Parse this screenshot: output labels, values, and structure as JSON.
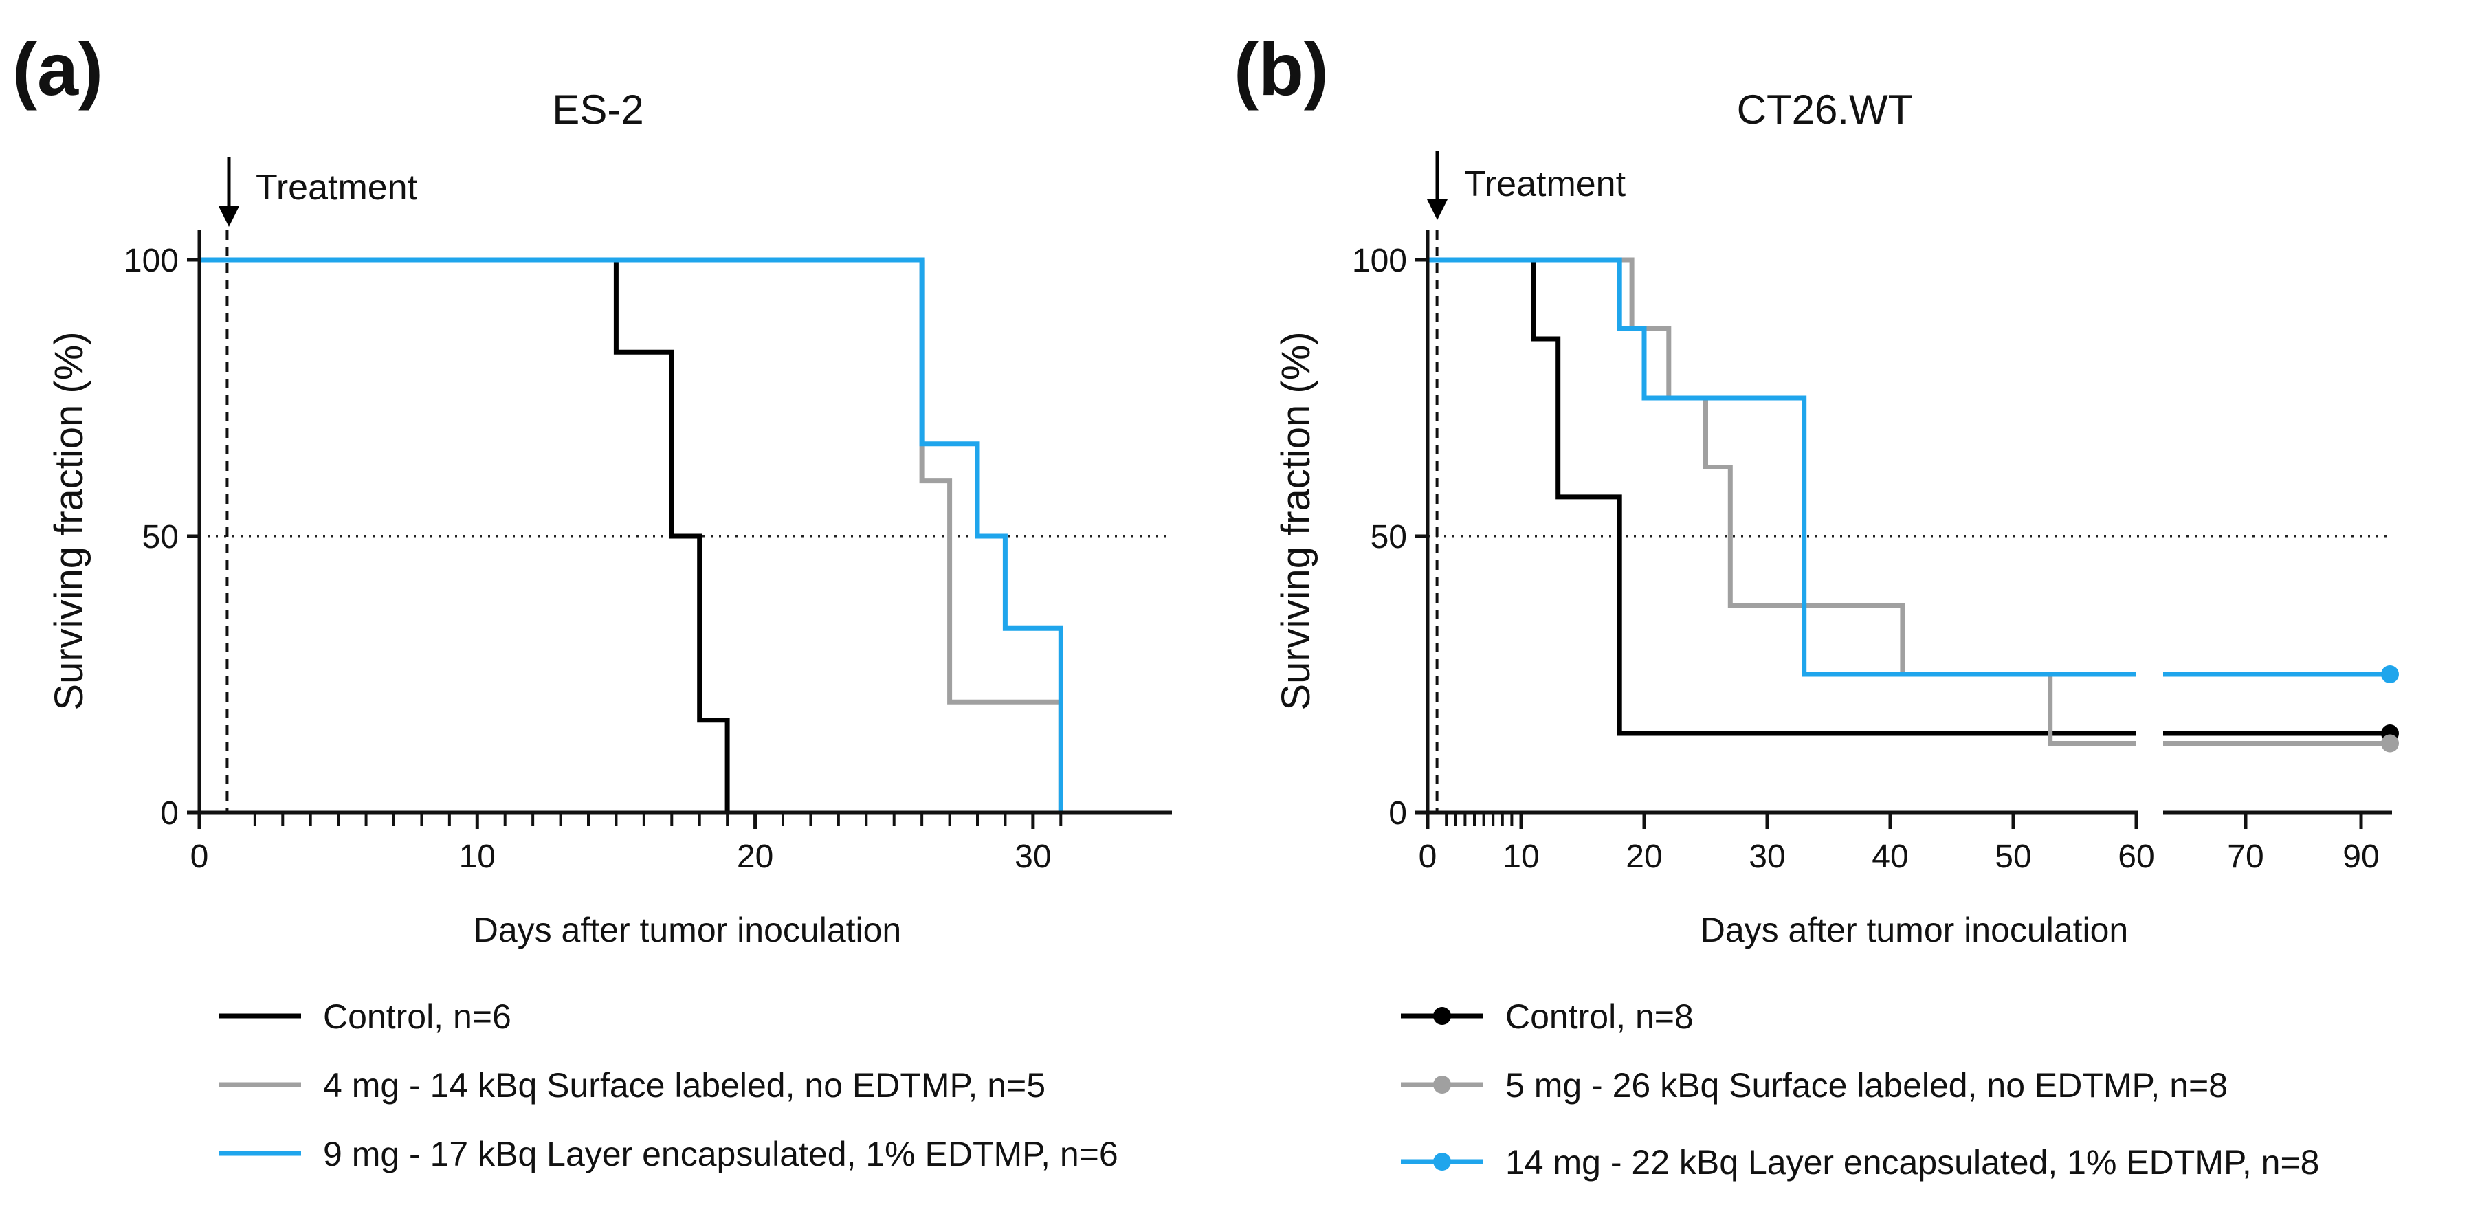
{
  "chart_data": [
    {
      "panel": "(a)",
      "type": "line",
      "subtype": "kaplan-meier",
      "title": "ES-2",
      "xlabel": "Days after tumor inoculation",
      "ylabel": "Surviving fraction (%)",
      "xlim": [
        0,
        35
      ],
      "ylim": [
        0,
        100
      ],
      "xticks": [
        0,
        10,
        20,
        30
      ],
      "minor_xticks": [
        2,
        3,
        4,
        5,
        6,
        7,
        8,
        9,
        10,
        11,
        12,
        13,
        14,
        15,
        16,
        17,
        18,
        19,
        20,
        21,
        22,
        23,
        24,
        25,
        26,
        27,
        28,
        29,
        30,
        31
      ],
      "yticks": [
        0,
        50,
        100
      ],
      "annotation": "Treatment",
      "treatment_day": 1,
      "reference_y": 50,
      "series": [
        {
          "name": "Control, n=6",
          "color": "#000000",
          "points": [
            [
              0,
              100
            ],
            [
              15,
              100
            ],
            [
              15,
              83.3
            ],
            [
              17,
              83.3
            ],
            [
              17,
              50
            ],
            [
              18,
              50
            ],
            [
              18,
              16.7
            ],
            [
              19,
              16.7
            ],
            [
              19,
              0
            ]
          ]
        },
        {
          "name": "4 mg - 14 kBq  Surface labeled, no EDTMP, n=5",
          "color": "#a0a0a0",
          "points": [
            [
              26,
              100
            ],
            [
              26,
              60
            ],
            [
              27,
              60
            ],
            [
              27,
              20
            ],
            [
              31,
              20
            ],
            [
              31,
              0
            ]
          ]
        },
        {
          "name": "9 mg - 17 kBq Layer encapsulated, 1%  EDTMP, n=6",
          "color": "#1fa5ec",
          "points": [
            [
              0,
              100
            ],
            [
              26,
              100
            ],
            [
              26,
              66.7
            ],
            [
              28,
              66.7
            ],
            [
              28,
              50
            ],
            [
              29,
              50
            ],
            [
              29,
              33.3
            ],
            [
              31,
              33.3
            ],
            [
              31,
              0
            ]
          ]
        }
      ],
      "legend": [
        "Control, n=6",
        "4 mg - 14 kBq  Surface labeled, no EDTMP, n=5",
        "9 mg - 17 kBq Layer encapsulated, 1%  EDTMP, n=6"
      ]
    },
    {
      "panel": "(b)",
      "type": "line",
      "subtype": "kaplan-meier",
      "title": "CT26.WT",
      "xlabel": "Days after tumor inoculation",
      "ylabel": "Surviving fraction (%)",
      "xlim": [
        0,
        95
      ],
      "axis_break": [
        60,
        63
      ],
      "ylim": [
        0,
        100
      ],
      "xticks": [
        0,
        10,
        20,
        30,
        40,
        50,
        60,
        70,
        90
      ],
      "minor_xticks": [
        2,
        3,
        4,
        5,
        6,
        7,
        8,
        9
      ],
      "yticks": [
        0,
        50,
        100
      ],
      "annotation": "Treatment",
      "treatment_day": 1,
      "reference_y": 50,
      "series": [
        {
          "name": "Control, n=8",
          "color": "#000000",
          "points": [
            [
              0,
              100
            ],
            [
              11,
              100
            ],
            [
              11,
              85.7
            ],
            [
              13,
              85.7
            ],
            [
              13,
              57.1
            ],
            [
              18,
              57.1
            ],
            [
              18,
              14.3
            ],
            [
              60,
              14.3
            ],
            [
              64,
              14.3
            ],
            [
              95,
              14.3
            ]
          ],
          "end_marker": true
        },
        {
          "name": "5 mg - 26 kBq Surface labeled, no EDTMP, n=8",
          "color": "#a0a0a0",
          "points": [
            [
              0,
              100
            ],
            [
              19,
              100
            ],
            [
              19,
              87.5
            ],
            [
              22,
              87.5
            ],
            [
              22,
              75
            ],
            [
              25,
              75
            ],
            [
              25,
              62.5
            ],
            [
              27,
              62.5
            ],
            [
              27,
              37.5
            ],
            [
              41,
              37.5
            ],
            [
              41,
              25
            ],
            [
              53,
              25
            ],
            [
              53,
              12.5
            ],
            [
              60,
              12.5
            ],
            [
              64,
              12.5
            ],
            [
              95,
              12.5
            ]
          ],
          "end_marker": true
        },
        {
          "name": "14 mg - 22 kBq Layer encapsulated, 1% EDTMP, n=8",
          "color": "#1fa5ec",
          "points": [
            [
              0,
              100
            ],
            [
              18,
              100
            ],
            [
              18,
              87.5
            ],
            [
              20,
              87.5
            ],
            [
              20,
              75
            ],
            [
              33,
              75
            ],
            [
              33,
              25
            ],
            [
              60,
              25
            ],
            [
              64,
              25
            ],
            [
              95,
              25
            ]
          ],
          "end_marker": true
        }
      ],
      "legend": [
        "Control, n=8",
        "5 mg - 26 kBq Surface labeled, no EDTMP, n=8",
        "14 mg - 22 kBq Layer encapsulated, 1% EDTMP, n=8"
      ]
    }
  ]
}
